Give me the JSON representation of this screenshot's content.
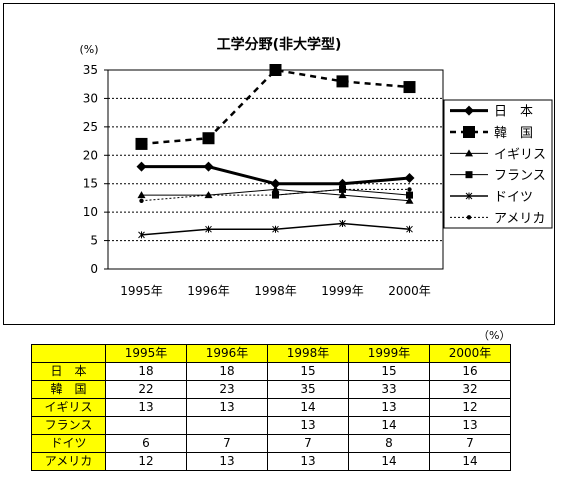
{
  "table_unit": "（%）",
  "table": {
    "columns": [
      "1995年",
      "1996年",
      "1998年",
      "1999年",
      "2000年"
    ],
    "rows": [
      {
        "label": "日　本",
        "values": [
          "18",
          "18",
          "15",
          "15",
          "16"
        ]
      },
      {
        "label": "韓　国",
        "values": [
          "22",
          "23",
          "35",
          "33",
          "32"
        ]
      },
      {
        "label": "イギリス",
        "values": [
          "13",
          "13",
          "14",
          "13",
          "12"
        ]
      },
      {
        "label": "フランス",
        "values": [
          "",
          "",
          "13",
          "14",
          "13"
        ]
      },
      {
        "label": "ドイツ",
        "values": [
          "6",
          "7",
          "7",
          "8",
          "7"
        ]
      },
      {
        "label": "アメリカ",
        "values": [
          "12",
          "13",
          "13",
          "14",
          "14"
        ]
      }
    ]
  },
  "chart_data": {
    "type": "line",
    "title": "工学分野(非大学型)",
    "ylabel": "(%)",
    "categories": [
      "1995年",
      "1996年",
      "1998年",
      "1999年",
      "2000年"
    ],
    "ylim": [
      0,
      35
    ],
    "yticks": [
      "0",
      "5",
      "10",
      "15",
      "20",
      "25",
      "30",
      "35"
    ],
    "grid": true,
    "legend_position": "right",
    "series": [
      {
        "name": "日　本",
        "values": [
          18,
          18,
          15,
          15,
          16
        ],
        "marker": "diamond",
        "dash": "solid",
        "width": 3
      },
      {
        "name": "韓　国",
        "values": [
          22,
          23,
          35,
          33,
          32
        ],
        "marker": "square-large",
        "dash": "dashed",
        "width": 2.5
      },
      {
        "name": "イギリス",
        "values": [
          13,
          13,
          14,
          13,
          12
        ],
        "marker": "triangle",
        "dash": "solid",
        "width": 1
      },
      {
        "name": "フランス",
        "values": [
          null,
          null,
          13,
          14,
          13
        ],
        "marker": "square",
        "dash": "solid",
        "width": 1
      },
      {
        "name": "ドイツ",
        "values": [
          6,
          7,
          7,
          8,
          7
        ],
        "marker": "star",
        "dash": "solid",
        "width": 1.5
      },
      {
        "name": "アメリカ",
        "values": [
          12,
          13,
          13,
          14,
          14
        ],
        "marker": "dot",
        "dash": "dotted",
        "width": 1
      }
    ]
  }
}
